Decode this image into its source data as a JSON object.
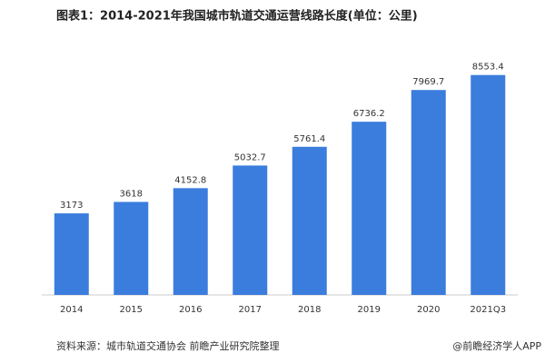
{
  "chart_data": {
    "type": "bar",
    "title": "图表1：2014-2021年我国城市轨道交通运营线路长度(单位：公里)",
    "categories": [
      "2014",
      "2015",
      "2016",
      "2017",
      "2018",
      "2019",
      "2020",
      "2021Q3"
    ],
    "values": [
      3173,
      3618,
      4152.8,
      5032.7,
      5761.4,
      6736.2,
      7969.7,
      8553.4
    ],
    "color": "#3b7ddd",
    "ylim": [
      0,
      9000
    ],
    "source": "资料来源：城市轨道交通协会 前瞻产业研究院整理",
    "credit": "@前瞻经济学人APP"
  }
}
